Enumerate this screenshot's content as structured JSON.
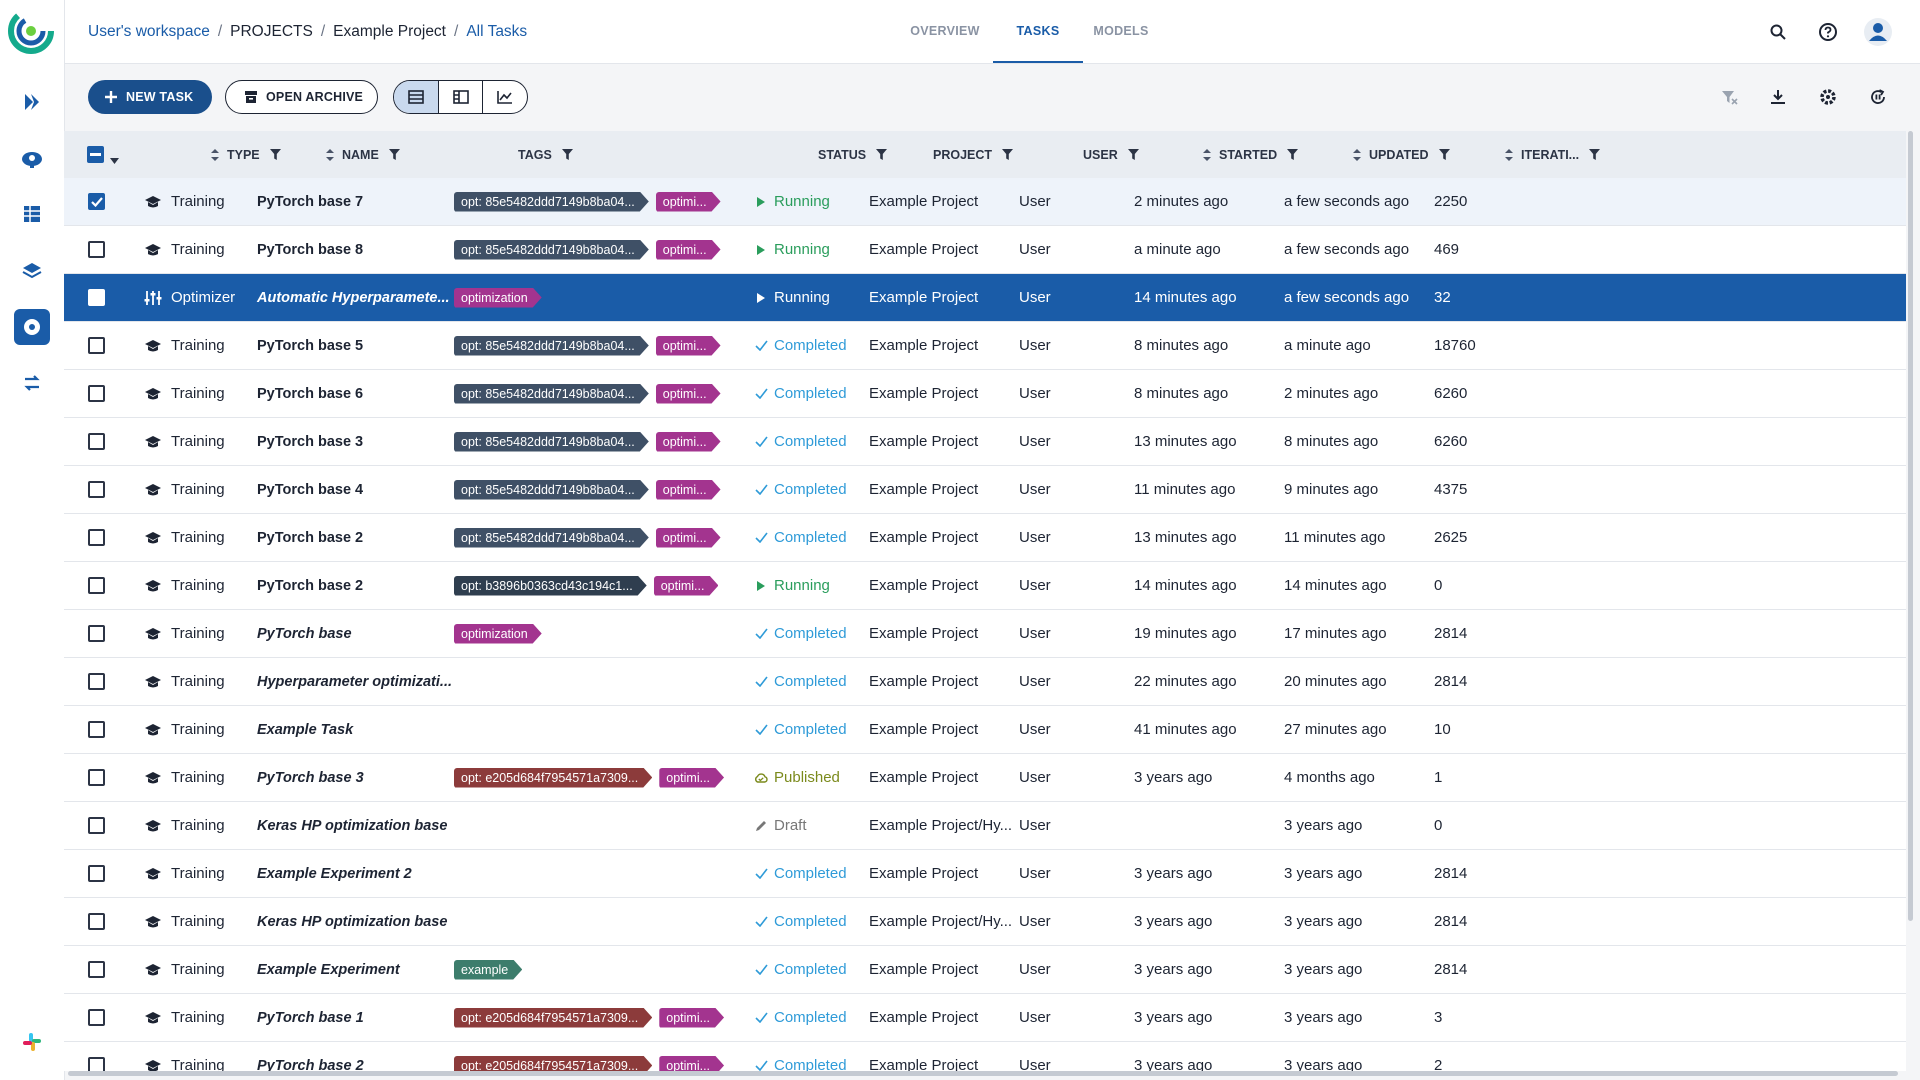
{
  "header": {
    "breadcrumb": [
      "User's workspace",
      "PROJECTS",
      "Example Project",
      "All Tasks"
    ],
    "separator": "/",
    "tabs": [
      "OVERVIEW",
      "TASKS",
      "MODELS"
    ],
    "active_tab": 1
  },
  "toolbar": {
    "new_task": "NEW TASK",
    "open_archive": "OPEN ARCHIVE"
  },
  "table": {
    "columns": [
      "TYPE",
      "NAME",
      "TAGS",
      "STATUS",
      "PROJECT",
      "USER",
      "STARTED",
      "UPDATED",
      "ITERATI..."
    ],
    "rows": [
      {
        "type": "Training",
        "icon": "training",
        "name": "PyTorch base 7",
        "italic": false,
        "checked": true,
        "selected": false,
        "tags": [
          {
            "text": "opt: 85e5482ddd7149b8ba04...",
            "color": "#3f5066"
          },
          {
            "text": "optimi...",
            "color": "#a3348f"
          }
        ],
        "status": {
          "label": "Running",
          "color": "#2a9d5c",
          "icon": "play"
        },
        "project": "Example Project",
        "user": "User",
        "started": "2 minutes ago",
        "updated": "a few seconds ago",
        "iterations": 2250
      },
      {
        "type": "Training",
        "icon": "training",
        "name": "PyTorch base 8",
        "italic": false,
        "checked": false,
        "selected": false,
        "tags": [
          {
            "text": "opt: 85e5482ddd7149b8ba04...",
            "color": "#3f5066"
          },
          {
            "text": "optimi...",
            "color": "#a3348f"
          }
        ],
        "status": {
          "label": "Running",
          "color": "#2a9d5c",
          "icon": "play"
        },
        "project": "Example Project",
        "user": "User",
        "started": "a minute ago",
        "updated": "a few seconds ago",
        "iterations": 469
      },
      {
        "type": "Optimizer",
        "icon": "optimizer",
        "name": "Automatic Hyperparamete...",
        "italic": true,
        "checked": false,
        "selected": true,
        "tags": [
          {
            "text": "optimization",
            "color": "#a3348f"
          }
        ],
        "status": {
          "label": "Running",
          "color": "#2a9d5c",
          "icon": "play"
        },
        "project": "Example Project",
        "user": "User",
        "started": "14 minutes ago",
        "updated": "a few seconds ago",
        "iterations": 32
      },
      {
        "type": "Training",
        "icon": "training",
        "name": "PyTorch base 5",
        "italic": false,
        "checked": false,
        "selected": false,
        "tags": [
          {
            "text": "opt: 85e5482ddd7149b8ba04...",
            "color": "#3f5066"
          },
          {
            "text": "optimi...",
            "color": "#a3348f"
          }
        ],
        "status": {
          "label": "Completed",
          "color": "#2f9bd8",
          "icon": "check"
        },
        "project": "Example Project",
        "user": "User",
        "started": "8 minutes ago",
        "updated": "a minute ago",
        "iterations": 18760
      },
      {
        "type": "Training",
        "icon": "training",
        "name": "PyTorch base 6",
        "italic": false,
        "checked": false,
        "selected": false,
        "tags": [
          {
            "text": "opt: 85e5482ddd7149b8ba04...",
            "color": "#3f5066"
          },
          {
            "text": "optimi...",
            "color": "#a3348f"
          }
        ],
        "status": {
          "label": "Completed",
          "color": "#2f9bd8",
          "icon": "check"
        },
        "project": "Example Project",
        "user": "User",
        "started": "8 minutes ago",
        "updated": "2 minutes ago",
        "iterations": 6260
      },
      {
        "type": "Training",
        "icon": "training",
        "name": "PyTorch base 3",
        "italic": false,
        "checked": false,
        "selected": false,
        "tags": [
          {
            "text": "opt: 85e5482ddd7149b8ba04...",
            "color": "#3f5066"
          },
          {
            "text": "optimi...",
            "color": "#a3348f"
          }
        ],
        "status": {
          "label": "Completed",
          "color": "#2f9bd8",
          "icon": "check"
        },
        "project": "Example Project",
        "user": "User",
        "started": "13 minutes ago",
        "updated": "8 minutes ago",
        "iterations": 6260
      },
      {
        "type": "Training",
        "icon": "training",
        "name": "PyTorch base 4",
        "italic": false,
        "checked": false,
        "selected": false,
        "tags": [
          {
            "text": "opt: 85e5482ddd7149b8ba04...",
            "color": "#3f5066"
          },
          {
            "text": "optimi...",
            "color": "#a3348f"
          }
        ],
        "status": {
          "label": "Completed",
          "color": "#2f9bd8",
          "icon": "check"
        },
        "project": "Example Project",
        "user": "User",
        "started": "11 minutes ago",
        "updated": "9 minutes ago",
        "iterations": 4375
      },
      {
        "type": "Training",
        "icon": "training",
        "name": "PyTorch base 2",
        "italic": false,
        "checked": false,
        "selected": false,
        "tags": [
          {
            "text": "opt: 85e5482ddd7149b8ba04...",
            "color": "#3f5066"
          },
          {
            "text": "optimi...",
            "color": "#a3348f"
          }
        ],
        "status": {
          "label": "Completed",
          "color": "#2f9bd8",
          "icon": "check"
        },
        "project": "Example Project",
        "user": "User",
        "started": "13 minutes ago",
        "updated": "11 minutes ago",
        "iterations": 2625
      },
      {
        "type": "Training",
        "icon": "training",
        "name": "PyTorch base 2",
        "italic": false,
        "checked": false,
        "selected": false,
        "tags": [
          {
            "text": "opt: b3896b0363cd43c194c1...",
            "color": "#2f3e4f"
          },
          {
            "text": "optimi...",
            "color": "#a3348f"
          }
        ],
        "status": {
          "label": "Running",
          "color": "#2a9d5c",
          "icon": "play"
        },
        "project": "Example Project",
        "user": "User",
        "started": "14 minutes ago",
        "updated": "14 minutes ago",
        "iterations": 0
      },
      {
        "type": "Training",
        "icon": "training",
        "name": "PyTorch base",
        "italic": true,
        "checked": false,
        "selected": false,
        "tags": [
          {
            "text": "optimization",
            "color": "#a3348f"
          }
        ],
        "status": {
          "label": "Completed",
          "color": "#2f9bd8",
          "icon": "check"
        },
        "project": "Example Project",
        "user": "User",
        "started": "19 minutes ago",
        "updated": "17 minutes ago",
        "iterations": 2814
      },
      {
        "type": "Training",
        "icon": "training",
        "name": "Hyperparameter optimizati...",
        "italic": true,
        "checked": false,
        "selected": false,
        "tags": [],
        "status": {
          "label": "Completed",
          "color": "#2f9bd8",
          "icon": "check"
        },
        "project": "Example Project",
        "user": "User",
        "started": "22 minutes ago",
        "updated": "20 minutes ago",
        "iterations": 2814
      },
      {
        "type": "Training",
        "icon": "training",
        "name": "Example Task",
        "italic": true,
        "checked": false,
        "selected": false,
        "tags": [],
        "status": {
          "label": "Completed",
          "color": "#2f9bd8",
          "icon": "check"
        },
        "project": "Example Project",
        "user": "User",
        "started": "41 minutes ago",
        "updated": "27 minutes ago",
        "iterations": 10
      },
      {
        "type": "Training",
        "icon": "training",
        "name": "PyTorch base 3",
        "italic": true,
        "checked": false,
        "selected": false,
        "tags": [
          {
            "text": "opt: e205d684f7954571a7309...",
            "color": "#8c3b3b"
          },
          {
            "text": "optimi...",
            "color": "#a3348f"
          }
        ],
        "status": {
          "label": "Published",
          "color": "#7b8a1c",
          "icon": "cloud"
        },
        "project": "Example Project",
        "user": "User",
        "started": "3 years ago",
        "updated": "4 months ago",
        "iterations": 1
      },
      {
        "type": "Training",
        "icon": "training",
        "name": "Keras HP optimization base",
        "italic": true,
        "checked": false,
        "selected": false,
        "tags": [],
        "status": {
          "label": "Draft",
          "color": "#777777",
          "icon": "pencil"
        },
        "project": "Example Project/Hy...",
        "user": "User",
        "started": null,
        "updated": "3 years ago",
        "iterations": 0
      },
      {
        "type": "Training",
        "icon": "training",
        "name": "Example Experiment 2",
        "italic": true,
        "checked": false,
        "selected": false,
        "tags": [],
        "status": {
          "label": "Completed",
          "color": "#2f9bd8",
          "icon": "check"
        },
        "project": "Example Project",
        "user": "User",
        "started": "3 years ago",
        "updated": "3 years ago",
        "iterations": 2814
      },
      {
        "type": "Training",
        "icon": "training",
        "name": "Keras HP optimization base",
        "italic": true,
        "checked": false,
        "selected": false,
        "tags": [],
        "status": {
          "label": "Completed",
          "color": "#2f9bd8",
          "icon": "check"
        },
        "project": "Example Project/Hy...",
        "user": "User",
        "started": "3 years ago",
        "updated": "3 years ago",
        "iterations": 2814
      },
      {
        "type": "Training",
        "icon": "training",
        "name": "Example Experiment",
        "italic": true,
        "checked": false,
        "selected": false,
        "tags": [
          {
            "text": "example",
            "color": "#3d7d6c"
          }
        ],
        "status": {
          "label": "Completed",
          "color": "#2f9bd8",
          "icon": "check"
        },
        "project": "Example Project",
        "user": "User",
        "started": "3 years ago",
        "updated": "3 years ago",
        "iterations": 2814
      },
      {
        "type": "Training",
        "icon": "training",
        "name": "PyTorch base 1",
        "italic": true,
        "checked": false,
        "selected": false,
        "tags": [
          {
            "text": "opt: e205d684f7954571a7309...",
            "color": "#8c3b3b"
          },
          {
            "text": "optimi...",
            "color": "#a3348f"
          }
        ],
        "status": {
          "label": "Completed",
          "color": "#2f9bd8",
          "icon": "check"
        },
        "project": "Example Project",
        "user": "User",
        "started": "3 years ago",
        "updated": "3 years ago",
        "iterations": 3
      },
      {
        "type": "Training",
        "icon": "training",
        "name": "PyTorch base 2",
        "italic": true,
        "checked": false,
        "selected": false,
        "tags": [
          {
            "text": "opt: e205d684f7954571a7309...",
            "color": "#8c3b3b"
          },
          {
            "text": "optimi...",
            "color": "#a3348f"
          }
        ],
        "status": {
          "label": "Completed",
          "color": "#2f9bd8",
          "icon": "check"
        },
        "project": "Example Project",
        "user": "User",
        "started": "3 years ago",
        "updated": "3 years ago",
        "iterations": 2
      }
    ]
  }
}
